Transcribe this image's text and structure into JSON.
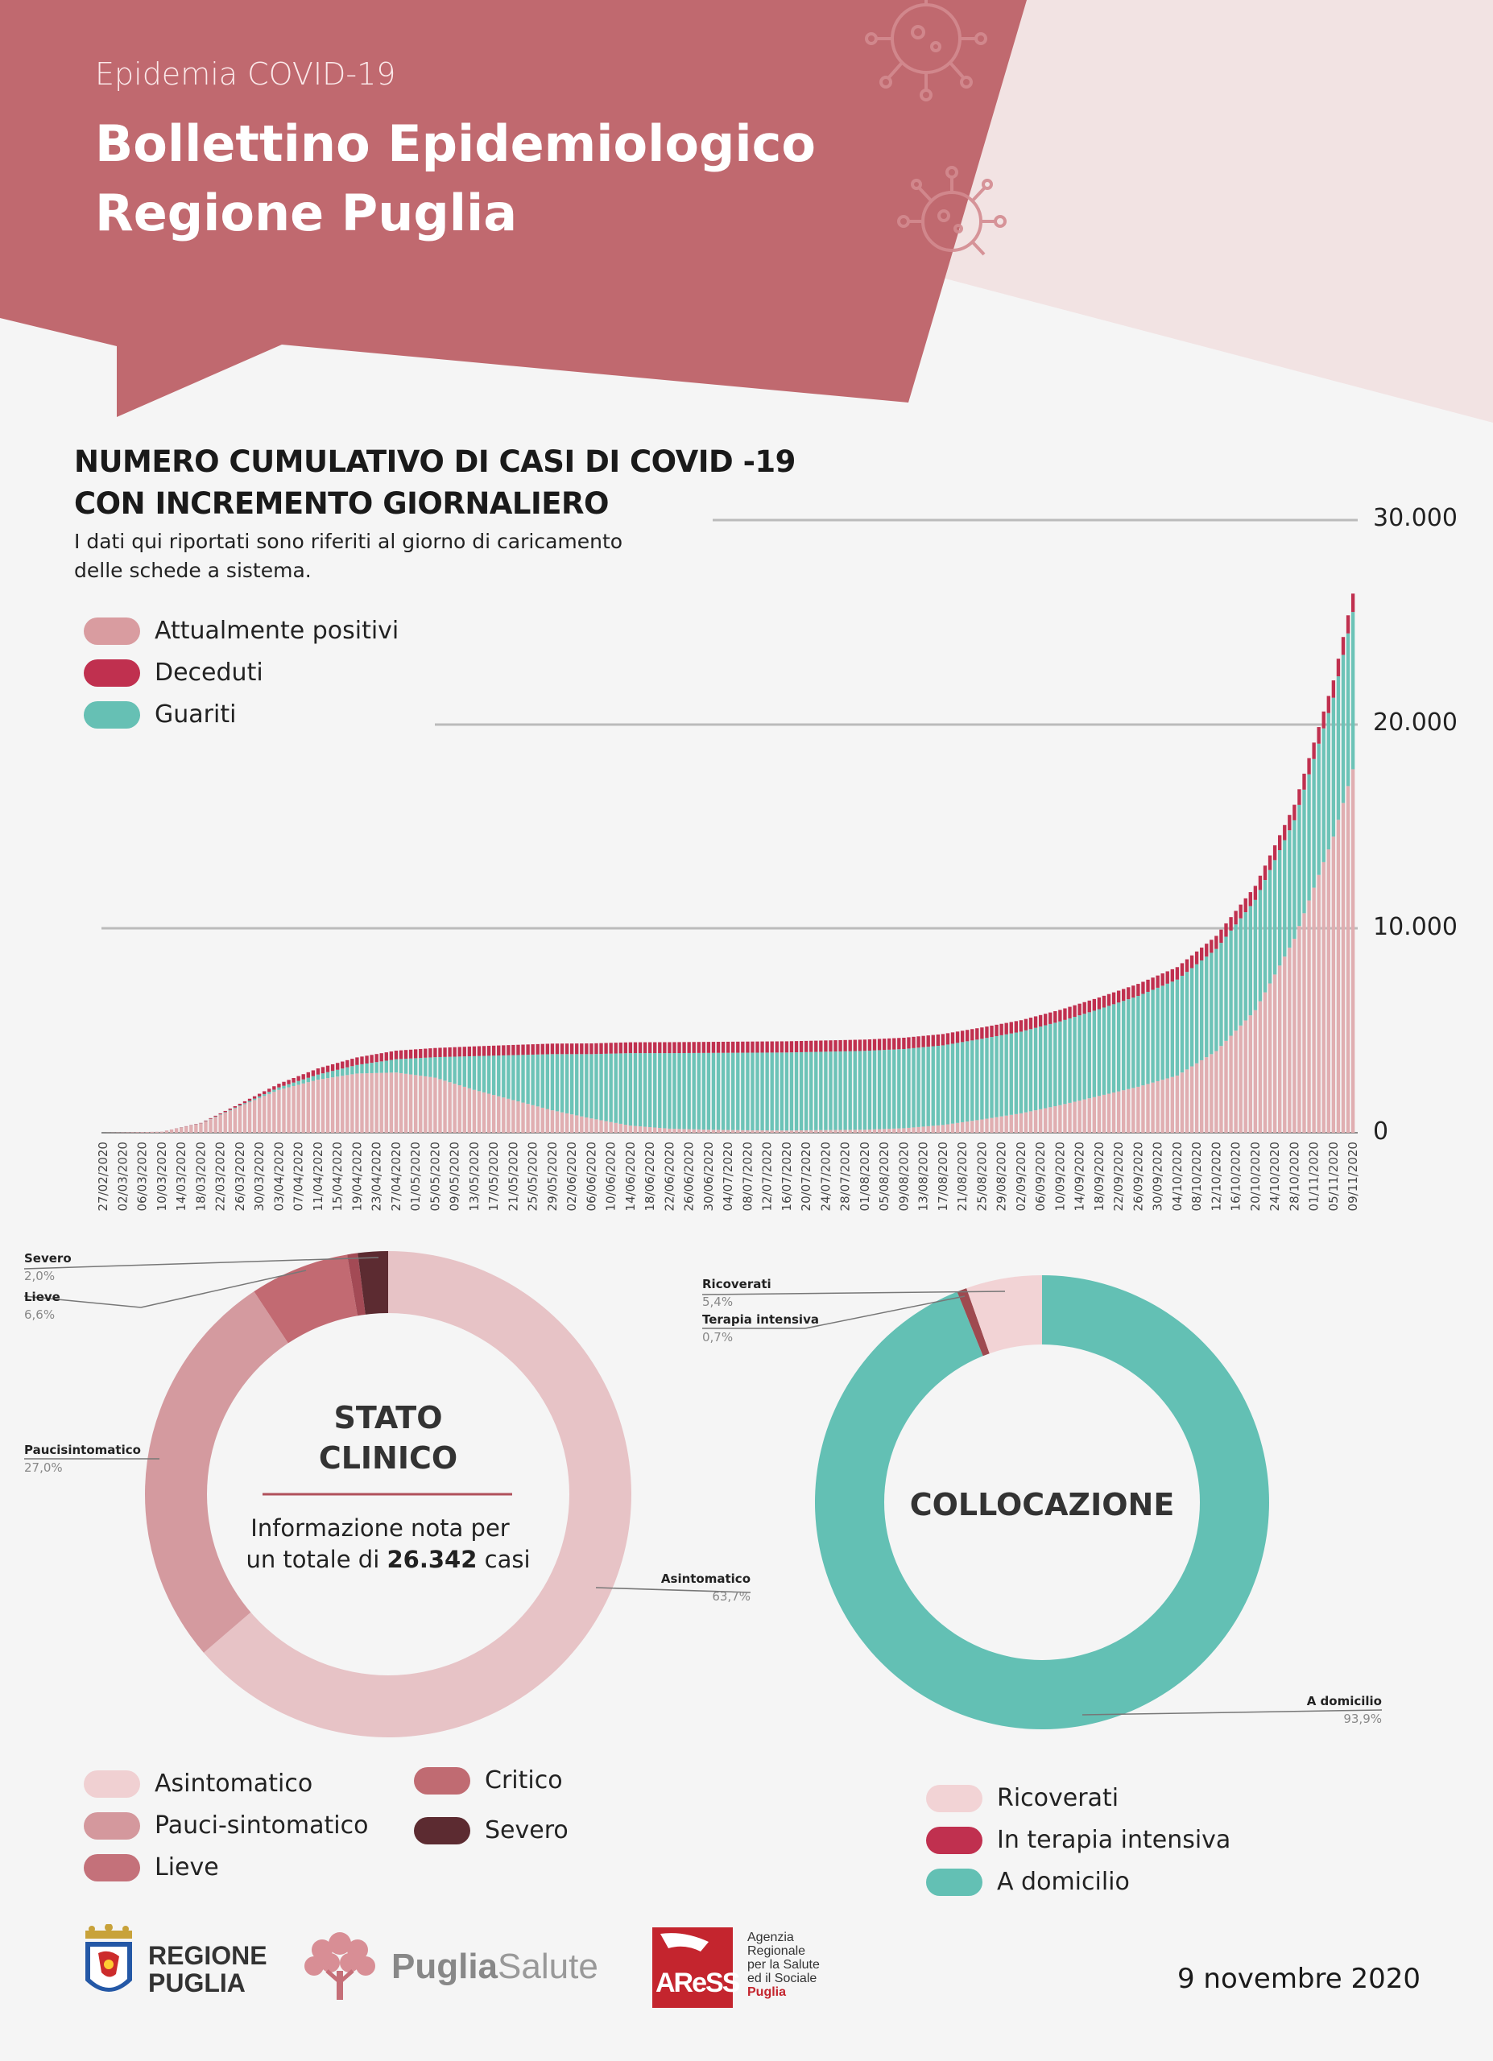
{
  "header": {
    "subtitle": "Epidemia COVID-19",
    "title_line1": "Bollettino Epidemiologico",
    "title_line2": "Regione Puglia"
  },
  "main_chart": {
    "title_line1": "NUMERO CUMULATIVO DI CASI DI COVID -19",
    "title_line2": "CON INCREMENTO GIORNALIERO",
    "note_line1": "I dati qui riportati sono riferiti al giorno di caricamento",
    "note_line2": "delle schede a sistema.",
    "legend": [
      {
        "label": "Attualmente positivi",
        "color": "#d99ca0"
      },
      {
        "label": "Deceduti",
        "color": "#c0304f"
      },
      {
        "label": "Guariti",
        "color": "#66c0b4"
      }
    ]
  },
  "chart_data": [
    {
      "type": "bar",
      "stacked": true,
      "title": "NUMERO CUMULATIVO DI CASI DI COVID -19 CON INCREMENTO GIORNALIERO",
      "ylim": [
        0,
        30000
      ],
      "y_ticks": [
        "0",
        "10.000",
        "20.000",
        "30.000"
      ],
      "y_tick_values": [
        0,
        10000,
        20000,
        30000
      ],
      "grid": true,
      "x_tick_labels": [
        "27/02/2020",
        "02/03/2020",
        "06/03/2020",
        "10/03/2020",
        "14/03/2020",
        "18/03/2020",
        "22/03/2020",
        "26/03/2020",
        "30/03/2020",
        "03/04/2020",
        "07/04/2020",
        "11/04/2020",
        "15/04/2020",
        "19/04/2020",
        "23/04/2020",
        "27/04/2020",
        "01/05/2020",
        "05/05/2020",
        "09/05/2020",
        "13/05/2020",
        "17/05/2020",
        "21/05/2020",
        "25/05/2020",
        "29/05/2020",
        "02/06/2020",
        "06/06/2020",
        "10/06/2020",
        "14/06/2020",
        "18/06/2020",
        "22/06/2020",
        "26/06/2020",
        "30/06/2020",
        "04/07/2020",
        "08/07/2020",
        "12/07/2020",
        "16/07/2020",
        "20/07/2020",
        "24/07/2020",
        "28/07/2020",
        "01/08/2020",
        "05/08/2020",
        "09/08/2020",
        "13/08/2020",
        "17/08/2020",
        "21/08/2020",
        "25/08/2020",
        "29/08/2020",
        "02/09/2020",
        "06/09/2020",
        "10/09/2020",
        "14/09/2020",
        "18/09/2020",
        "22/09/2020",
        "26/09/2020",
        "30/09/2020",
        "04/10/2020",
        "08/10/2020",
        "12/10/2020",
        "16/10/2020",
        "20/10/2020",
        "24/10/2020",
        "28/10/2020",
        "01/11/2020",
        "05/11/2020",
        "09/11/2020"
      ],
      "series_names": [
        "Attualmente positivi",
        "Deceduti",
        "Guariti"
      ],
      "key_points": [
        {
          "date": "27/02/2020",
          "positivi": 0,
          "deceduti": 0,
          "guariti": 0
        },
        {
          "date": "10/03/2020",
          "positivi": 50,
          "deceduti": 2,
          "guariti": 0
        },
        {
          "date": "18/03/2020",
          "positivi": 450,
          "deceduti": 20,
          "guariti": 10
        },
        {
          "date": "26/03/2020",
          "positivi": 1300,
          "deceduti": 80,
          "guariti": 40
        },
        {
          "date": "03/04/2020",
          "positivi": 2100,
          "deceduti": 180,
          "guariti": 120
        },
        {
          "date": "11/04/2020",
          "positivi": 2600,
          "deceduti": 300,
          "guariti": 250
        },
        {
          "date": "19/04/2020",
          "positivi": 2900,
          "deceduti": 370,
          "guariti": 420
        },
        {
          "date": "27/04/2020",
          "positivi": 2950,
          "deceduti": 420,
          "guariti": 650
        },
        {
          "date": "05/05/2020",
          "positivi": 2700,
          "deceduti": 450,
          "guariti": 1000
        },
        {
          "date": "13/05/2020",
          "positivi": 2100,
          "deceduti": 480,
          "guariti": 1650
        },
        {
          "date": "21/05/2020",
          "positivi": 1600,
          "deceduti": 500,
          "guariti": 2200
        },
        {
          "date": "29/05/2020",
          "positivi": 1100,
          "deceduti": 515,
          "guariti": 2750
        },
        {
          "date": "06/06/2020",
          "positivi": 700,
          "deceduti": 525,
          "guariti": 3150
        },
        {
          "date": "14/06/2020",
          "positivi": 350,
          "deceduti": 530,
          "guariti": 3550
        },
        {
          "date": "22/06/2020",
          "positivi": 200,
          "deceduti": 535,
          "guariti": 3700
        },
        {
          "date": "30/06/2020",
          "positivi": 150,
          "deceduti": 540,
          "guariti": 3760
        },
        {
          "date": "08/07/2020",
          "positivi": 120,
          "deceduti": 545,
          "guariti": 3800
        },
        {
          "date": "16/07/2020",
          "positivi": 110,
          "deceduti": 548,
          "guariti": 3820
        },
        {
          "date": "24/07/2020",
          "positivi": 130,
          "deceduti": 550,
          "guariti": 3840
        },
        {
          "date": "01/08/2020",
          "positivi": 150,
          "deceduti": 552,
          "guariti": 3860
        },
        {
          "date": "09/08/2020",
          "positivi": 220,
          "deceduti": 553,
          "guariti": 3880
        },
        {
          "date": "17/08/2020",
          "positivi": 380,
          "deceduti": 554,
          "guariti": 3900
        },
        {
          "date": "25/08/2020",
          "positivi": 650,
          "deceduti": 556,
          "guariti": 3950
        },
        {
          "date": "02/09/2020",
          "positivi": 950,
          "deceduti": 560,
          "guariti": 4000
        },
        {
          "date": "10/09/2020",
          "positivi": 1350,
          "deceduti": 565,
          "guariti": 4100
        },
        {
          "date": "18/09/2020",
          "positivi": 1800,
          "deceduti": 575,
          "guariti": 4250
        },
        {
          "date": "26/09/2020",
          "positivi": 2250,
          "deceduti": 590,
          "guariti": 4450
        },
        {
          "date": "04/10/2020",
          "positivi": 2800,
          "deceduti": 610,
          "guariti": 4700
        },
        {
          "date": "12/10/2020",
          "positivi": 4000,
          "deceduti": 640,
          "guariti": 5000
        },
        {
          "date": "20/10/2020",
          "positivi": 6000,
          "deceduti": 690,
          "guariti": 5400
        },
        {
          "date": "28/10/2020",
          "positivi": 9500,
          "deceduti": 760,
          "guariti": 5800
        },
        {
          "date": "05/11/2020",
          "positivi": 14500,
          "deceduti": 850,
          "guariti": 6800
        },
        {
          "date": "09/11/2020",
          "positivi": 17800,
          "deceduti": 900,
          "guariti": 7700
        }
      ]
    },
    {
      "type": "pie",
      "title": "STATO CLINICO",
      "slices": [
        {
          "label": "Asintomatico",
          "value": 63.7,
          "pct": "63,7%",
          "color": "#e7c3c6"
        },
        {
          "label": "Paucisintomatico",
          "value": 27.0,
          "pct": "27,0%",
          "color": "#d49a9f"
        },
        {
          "label": "Lieve",
          "value": 6.6,
          "pct": "6,6%",
          "color": "#c26a72"
        },
        {
          "label": "Critico",
          "value": 0.7,
          "pct": "",
          "color": "#a34a55"
        },
        {
          "label": "Severo",
          "value": 2.0,
          "pct": "2,0%",
          "color": "#5c2b31"
        }
      ]
    },
    {
      "type": "pie",
      "title": "COLLOCAZIONE",
      "slices": [
        {
          "label": "A domicilio",
          "value": 93.9,
          "pct": "93,9%",
          "color": "#63c0b4"
        },
        {
          "label": "Terapia intensiva",
          "value": 0.7,
          "pct": "0,7%",
          "color": "#9e4a50"
        },
        {
          "label": "Ricoverati",
          "value": 5.4,
          "pct": "5,4%",
          "color": "#f2d3d5"
        }
      ]
    }
  ],
  "donut1": {
    "title_line1": "STATO",
    "title_line2": "CLINICO",
    "info_line1": "Informazione nota per",
    "info_prefix": "un totale di",
    "info_bold": "26.342",
    "info_suffix": "casi",
    "callouts": {
      "severo_label": "Severo",
      "severo_pct": "2,0%",
      "lieve_label": "Lieve",
      "lieve_pct": "6,6%",
      "pauci_label": "Paucisintomatico",
      "pauci_pct": "27,0%",
      "asint_label": "Asintomatico",
      "asint_pct": "63,7%"
    },
    "legend": [
      {
        "label": "Asintomatico",
        "color": "#f0d0d2"
      },
      {
        "label": "Pauci-sintomatico",
        "color": "#d4989d"
      },
      {
        "label": "Lieve",
        "color": "#c4717a"
      },
      {
        "label": "Critico",
        "color": "#c06b72"
      },
      {
        "label": "Severo",
        "color": "#5c2b31"
      }
    ]
  },
  "donut2": {
    "title": "COLLOCAZIONE",
    "callouts": {
      "ricoverati_label": "Ricoverati",
      "ricoverati_pct": "5,4%",
      "ti_label": "Terapia intensiva",
      "ti_pct": "0,7%",
      "domicilio_label": "A domicilio",
      "domicilio_pct": "93,9%"
    },
    "legend": [
      {
        "label": "Ricoverati",
        "color": "#f2d3d5"
      },
      {
        "label": "In terapia intensiva",
        "color": "#c0304f"
      },
      {
        "label": "A domicilio",
        "color": "#63c0b4"
      }
    ]
  },
  "footer": {
    "logo1_line1": "REGIONE",
    "logo1_line2": "PUGLIA",
    "logo2_a": "Puglia",
    "logo2_b": "Salute",
    "logo3_mark": "AReSS",
    "logo3_lines": [
      "Agenzia",
      "Regionale",
      "per la Salute",
      "ed il Sociale",
      "Puglia"
    ],
    "date": "9 novembre 2020"
  },
  "colors": {
    "header_red": "#c0696f",
    "header_pink": "#f2e3e3",
    "teal": "#63c0b4",
    "dark_red": "#c0304f"
  }
}
